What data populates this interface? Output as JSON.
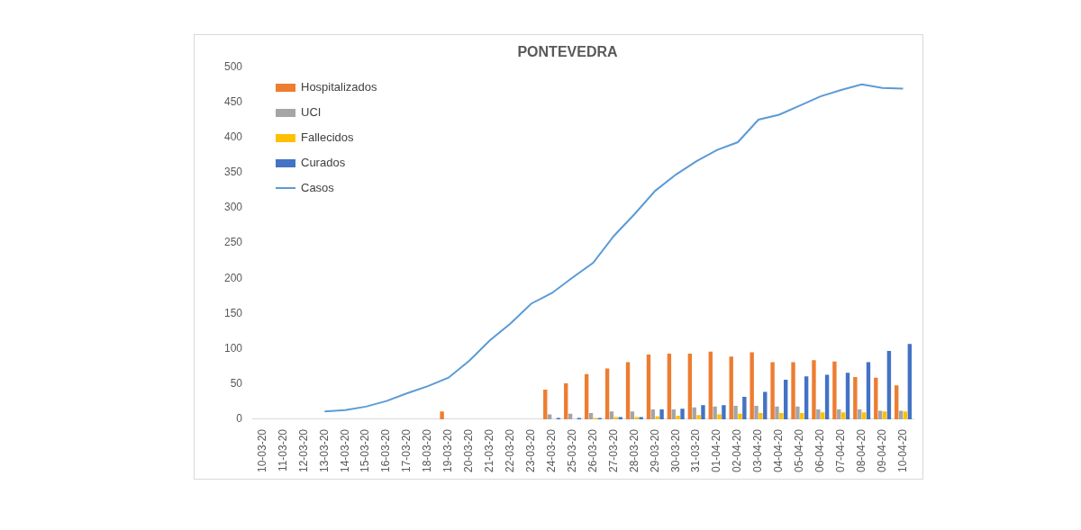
{
  "chart_data": {
    "type": "bar",
    "title": "PONTEVEDRA",
    "categories": [
      "10-03-20",
      "11-03-20",
      "12-03-20",
      "13-03-20",
      "14-03-20",
      "15-03-20",
      "16-03-20",
      "17-03-20",
      "18-03-20",
      "19-03-20",
      "20-03-20",
      "21-03-20",
      "22-03-20",
      "23-03-20",
      "24-03-20",
      "25-03-20",
      "26-03-20",
      "27-03-20",
      "28-03-20",
      "29-03-20",
      "30-03-20",
      "31-03-20",
      "01-04-20",
      "02-04-20",
      "03-04-20",
      "04-04-20",
      "05-04-20",
      "06-04-20",
      "07-04-20",
      "08-04-20",
      "09-04-20",
      "10-04-20"
    ],
    "series": [
      {
        "name": "Hospitalizados",
        "type": "bar",
        "color": "#ed7d31",
        "values": [
          null,
          null,
          null,
          null,
          null,
          null,
          null,
          null,
          null,
          11,
          null,
          null,
          null,
          null,
          42,
          51,
          64,
          72,
          81,
          92,
          93,
          93,
          96,
          89,
          95,
          81,
          81,
          84,
          82,
          60,
          59,
          48
        ]
      },
      {
        "name": "UCI",
        "type": "bar",
        "color": "#a5a5a5",
        "values": [
          null,
          null,
          null,
          null,
          null,
          null,
          null,
          null,
          null,
          null,
          null,
          null,
          null,
          null,
          7,
          8,
          9,
          11,
          11,
          14,
          14,
          17,
          18,
          19,
          19,
          18,
          18,
          14,
          14,
          14,
          12,
          12
        ]
      },
      {
        "name": "Fallecidos",
        "type": "bar",
        "color": "#ffc000",
        "values": [
          null,
          null,
          null,
          null,
          null,
          null,
          null,
          null,
          null,
          null,
          null,
          null,
          null,
          null,
          null,
          null,
          2,
          3,
          3,
          4,
          5,
          6,
          7,
          8,
          9,
          9,
          9,
          10,
          10,
          10,
          11,
          11
        ]
      },
      {
        "name": "Curados",
        "type": "bar",
        "color": "#4472c4",
        "values": [
          null,
          null,
          null,
          null,
          null,
          null,
          null,
          null,
          null,
          null,
          null,
          null,
          null,
          null,
          2,
          2,
          2,
          3,
          3,
          14,
          15,
          20,
          20,
          32,
          39,
          56,
          61,
          63,
          66,
          81,
          97,
          107
        ]
      },
      {
        "name": "Casos",
        "type": "line",
        "color": "#5b9bd5",
        "values": [
          null,
          null,
          null,
          11,
          13,
          18,
          26,
          37,
          47,
          59,
          83,
          112,
          136,
          164,
          179,
          201,
          222,
          260,
          291,
          324,
          347,
          366,
          382,
          393,
          425,
          432,
          445,
          458,
          467,
          475,
          470,
          469
        ]
      }
    ],
    "ylim": [
      0,
      500
    ],
    "yticks": [
      0,
      50,
      100,
      150,
      200,
      250,
      300,
      350,
      400,
      450,
      500
    ],
    "grid": false,
    "legend": "upper left"
  }
}
